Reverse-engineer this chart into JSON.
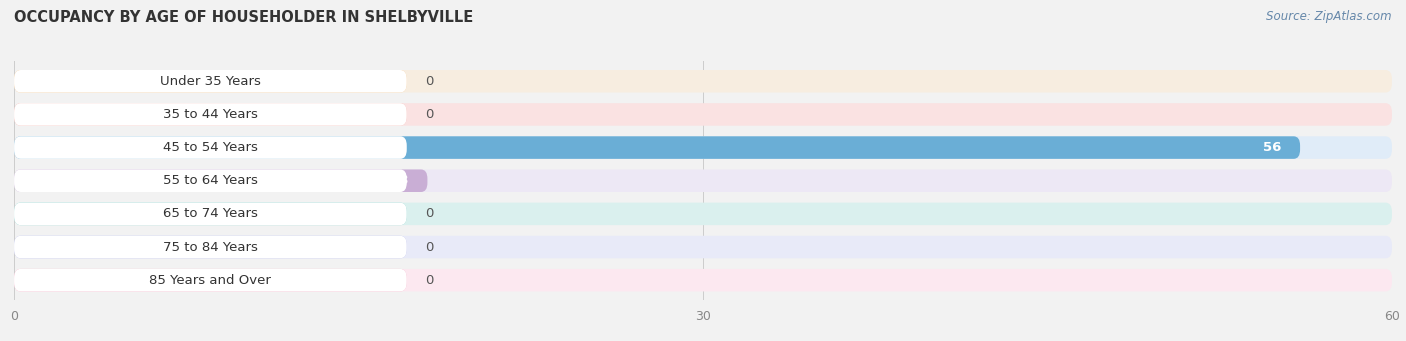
{
  "title": "OCCUPANCY BY AGE OF HOUSEHOLDER IN SHELBYVILLE",
  "source": "Source: ZipAtlas.com",
  "categories": [
    "Under 35 Years",
    "35 to 44 Years",
    "45 to 54 Years",
    "55 to 64 Years",
    "65 to 74 Years",
    "75 to 84 Years",
    "85 Years and Over"
  ],
  "values": [
    0,
    0,
    56,
    18,
    0,
    0,
    0
  ],
  "bar_colors": [
    "#f5c48a",
    "#f5a8a0",
    "#6aaed6",
    "#c9aed5",
    "#7ecdc8",
    "#b0b4e8",
    "#f5a8c0"
  ],
  "row_bg_colors": [
    "#f7ede0",
    "#fae2e2",
    "#e0ecf8",
    "#ede8f5",
    "#daf0ee",
    "#e8eaf8",
    "#fce8f0"
  ],
  "xlim": [
    0,
    60
  ],
  "xticks": [
    0,
    30,
    60
  ],
  "bg_color": "#f2f2f2",
  "label_fontsize": 9.5,
  "title_fontsize": 10.5,
  "bar_height": 0.68,
  "row_sep": 0.08
}
